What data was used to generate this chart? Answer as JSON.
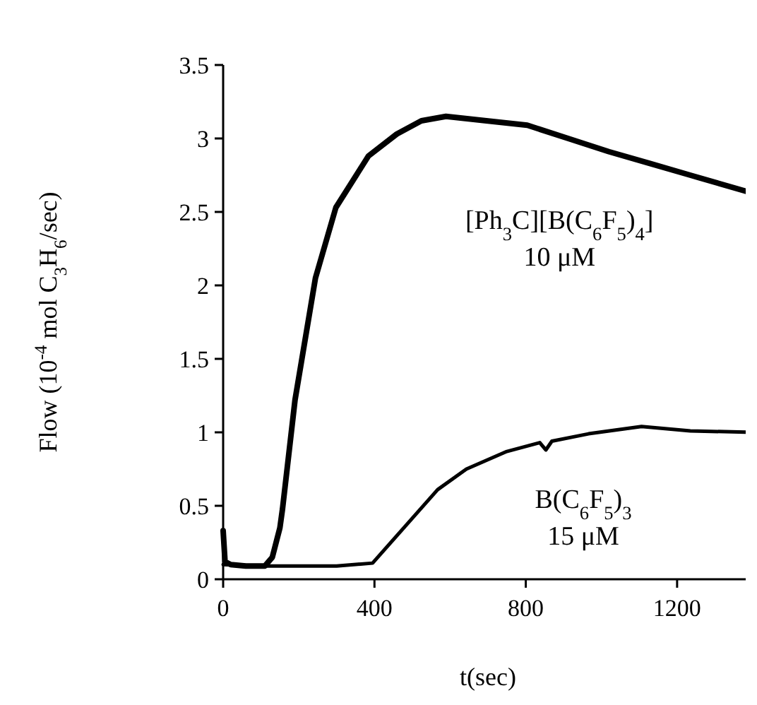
{
  "chart_data": {
    "type": "line",
    "xlabel": "t(sec)",
    "ylabel": "Flow (10$^{-4}$ mol C$_{3}$H$_{6}$/sec)",
    "xlim": [
      0,
      1400
    ],
    "xticks": [
      0,
      400,
      800,
      1200
    ],
    "ylim": [
      0,
      3.5
    ],
    "yticks": [
      0,
      0.5,
      1,
      1.5,
      2,
      2.5,
      3,
      3.5
    ],
    "grid": false,
    "marker": "none",
    "line_style": "solid",
    "series": [
      {
        "name": "[Ph$_{3}$C][B(C$_{6}$F$_{5}$)$_{4}$]",
        "color": "#000000",
        "x": [
          0,
          5,
          20,
          60,
          110,
          130,
          150,
          157,
          190,
          244,
          298,
          384,
          459,
          524,
          589,
          696,
          804,
          912,
          1020,
          1128,
          1235,
          1397
        ],
        "values": [
          0.33,
          0.12,
          0.1,
          0.09,
          0.09,
          0.15,
          0.35,
          0.48,
          1.22,
          2.05,
          2.53,
          2.88,
          3.03,
          3.12,
          3.15,
          3.12,
          3.09,
          3.0,
          2.91,
          2.83,
          2.75,
          2.63
        ]
      },
      {
        "name": "B(C$_{6}$F$_{5}$)$_{3}$",
        "color": "#000000",
        "x": [
          0,
          100,
          200,
          300,
          395,
          481,
          567,
          643,
          750,
          837,
          853,
          869,
          966,
          1106,
          1235,
          1397
        ],
        "values": [
          0.1,
          0.09,
          0.09,
          0.09,
          0.11,
          0.36,
          0.61,
          0.75,
          0.87,
          0.93,
          0.88,
          0.94,
          0.99,
          1.04,
          1.01,
          1.0
        ]
      }
    ],
    "annotations": [
      "10 μM",
      "15 μM"
    ]
  }
}
